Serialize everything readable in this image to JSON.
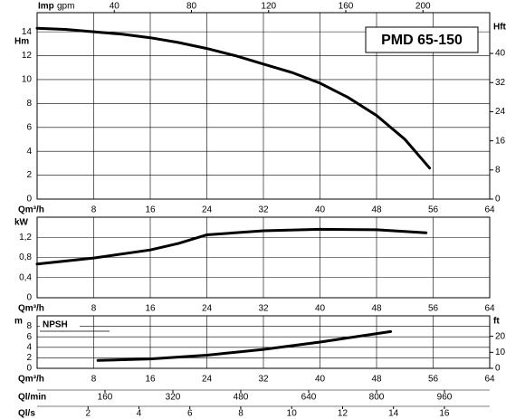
{
  "chart_data": [
    {
      "type": "line",
      "annotation": "PMD 65-150",
      "y_label": "Hm",
      "y2_label": "Hft",
      "x_label": "Qm³/h",
      "top_axis": {
        "label": "Imp",
        "unit": "gpm",
        "xlim": [
          0,
          234.6
        ],
        "xticks": [
          40,
          80,
          120,
          160,
          200
        ]
      },
      "x": [
        0,
        4,
        8,
        12,
        16,
        20,
        24,
        28,
        32,
        36,
        40,
        44,
        48,
        52,
        55.5
      ],
      "series": [
        {
          "color": "#000000",
          "values": [
            14.3,
            14.2,
            14.0,
            13.8,
            13.5,
            13.1,
            12.6,
            12.0,
            11.3,
            10.6,
            9.7,
            8.5,
            7.0,
            5.0,
            2.6
          ]
        }
      ],
      "xlim": [
        0,
        64
      ],
      "xticks": [
        8,
        16,
        24,
        32,
        40,
        48,
        56,
        64
      ],
      "ylim": [
        0,
        15.6
      ],
      "yticks": [
        0,
        2,
        4,
        6,
        8,
        10,
        12,
        14
      ],
      "y2lim": [
        0,
        51.2
      ],
      "y2ticks": [
        0,
        8,
        16,
        24,
        32,
        40
      ],
      "grid": true
    },
    {
      "type": "line",
      "y_label": "kW",
      "x_label": "Qm³/h",
      "x": [
        0,
        8,
        16,
        20,
        24,
        32,
        40,
        48,
        55
      ],
      "series": [
        {
          "color": "#000000",
          "values": [
            0.67,
            0.79,
            0.95,
            1.08,
            1.25,
            1.33,
            1.36,
            1.35,
            1.29
          ]
        }
      ],
      "xlim": [
        0,
        64
      ],
      "xticks": [
        8,
        16,
        24,
        32,
        40,
        48,
        56,
        64
      ],
      "ylim": [
        0,
        1.6
      ],
      "yticks": [
        0,
        {
          "value": 0.4,
          "label": "0,4"
        },
        {
          "value": 0.8,
          "label": "0,8"
        },
        {
          "value": 1.2,
          "label": "1,2"
        }
      ],
      "grid": true
    },
    {
      "type": "line",
      "inner_label": "NPSH",
      "y_label": "m",
      "y2_label": "ft",
      "x_label": "Qm³/h",
      "x": [
        8.6,
        16,
        24,
        32,
        40,
        50
      ],
      "series": [
        {
          "color": "#000000",
          "values": [
            1.5,
            1.8,
            2.5,
            3.6,
            5.0,
            7.0
          ]
        }
      ],
      "xlim": [
        0,
        64
      ],
      "xticks": [
        8,
        16,
        24,
        32,
        40,
        48,
        56,
        64
      ],
      "ylim": [
        0,
        10
      ],
      "yticks": [
        0,
        2,
        4,
        6,
        8
      ],
      "y2lim": [
        0,
        32.8
      ],
      "y2ticks": [
        0,
        10,
        20
      ],
      "grid": true,
      "bottom_axes": [
        {
          "label": "Ql/min",
          "xlim": [
            0,
            1066.7
          ],
          "xticks": [
            160,
            320,
            480,
            640,
            800,
            960
          ]
        },
        {
          "label": "Ql/s",
          "xlim": [
            0,
            17.78
          ],
          "xticks": [
            2,
            4,
            6,
            8,
            10,
            12,
            14,
            16
          ]
        }
      ]
    }
  ]
}
